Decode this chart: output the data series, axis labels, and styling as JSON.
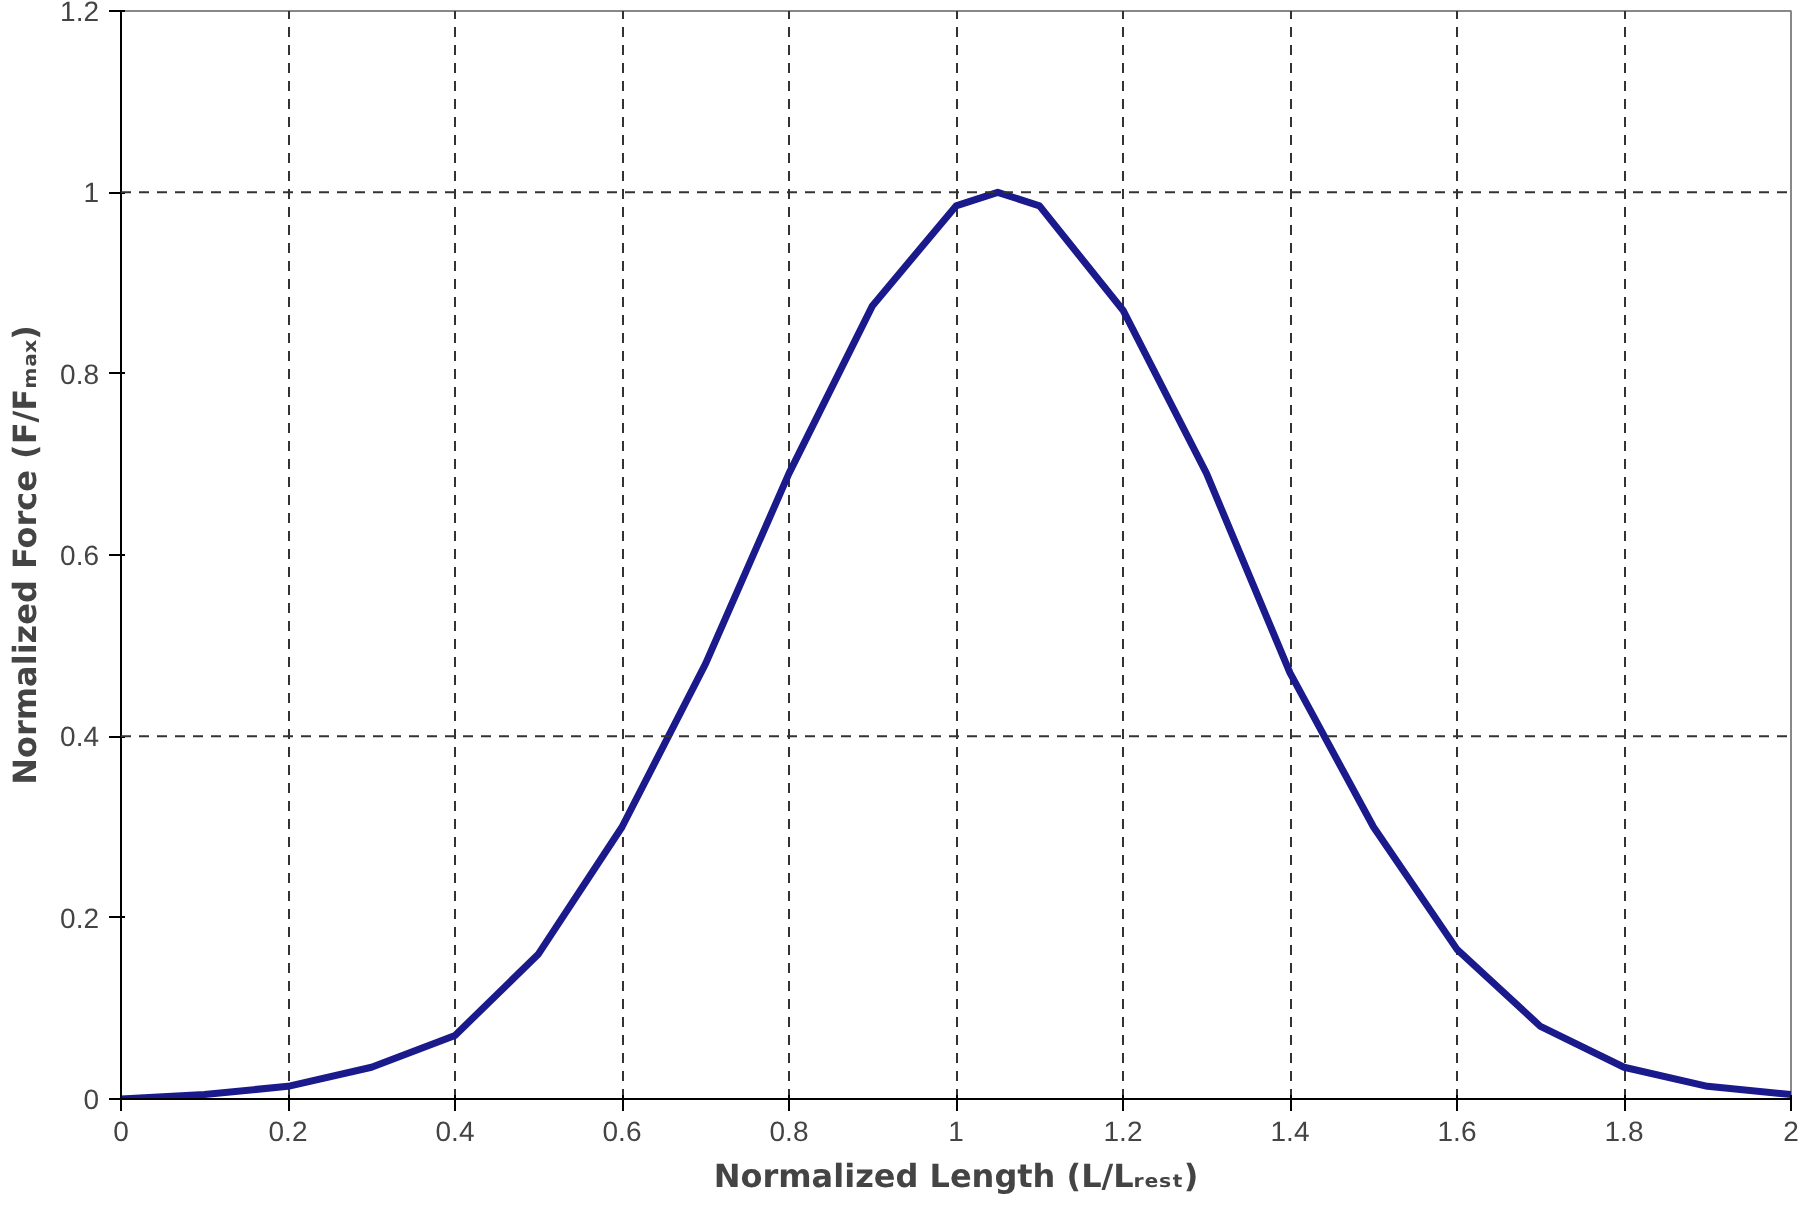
{
  "chart_data": {
    "type": "line",
    "xlabel": "Normalized Length (L/Lᵣₑₛₜ)",
    "ylabel": "Normalized Force (F/Fₘₐₓ)",
    "x": [
      0,
      0.1,
      0.2,
      0.3,
      0.4,
      0.5,
      0.6,
      0.7,
      0.8,
      0.9,
      1.0,
      1.05,
      1.1,
      1.2,
      1.3,
      1.4,
      1.5,
      1.6,
      1.7,
      1.8,
      1.9,
      2.0
    ],
    "series": [
      {
        "color": "#1a1a8c",
        "values": [
          0.0,
          0.005,
          0.014,
          0.035,
          0.07,
          0.16,
          0.3,
          0.48,
          0.69,
          0.875,
          0.985,
          1.0,
          0.985,
          0.87,
          0.69,
          0.47,
          0.3,
          0.165,
          0.08,
          0.035,
          0.014,
          0.005
        ]
      }
    ],
    "xlim": [
      0,
      2
    ],
    "ylim": [
      0,
      1.2
    ],
    "xticks": [
      0,
      0.2,
      0.4,
      0.6,
      0.8,
      1,
      1.2,
      1.4,
      1.6,
      1.8,
      2
    ],
    "yticks": [
      0,
      0.2,
      0.4,
      0.6,
      0.8,
      1,
      1.2
    ],
    "grid": "x",
    "line_style": "solid",
    "marker": "none",
    "ref_lines": [
      {
        "axis": "y",
        "value": 0.4,
        "color": "#333333",
        "line_style": "dashed"
      },
      {
        "axis": "y",
        "value": 1,
        "color": "#333333",
        "line_style": "dashed"
      }
    ]
  }
}
